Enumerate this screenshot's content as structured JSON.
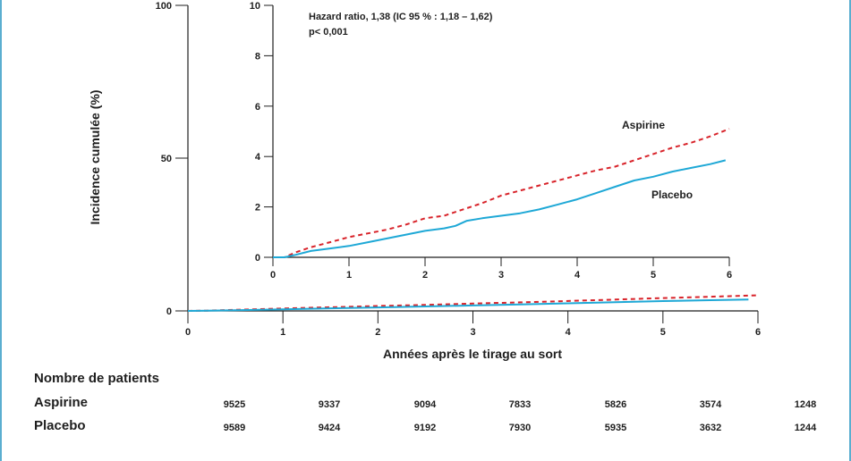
{
  "chart_data": [
    {
      "type": "line",
      "ylabel": "Incidence cumulée (%)",
      "xlabel": "Années après le tirage au sort",
      "xlim": [
        0,
        6
      ],
      "ylim": [
        0,
        100
      ],
      "x_ticks": [
        "0",
        "1",
        "2",
        "3",
        "4",
        "5",
        "6"
      ],
      "y_ticks": [
        "0",
        "50",
        "100"
      ],
      "series": [
        {
          "name": "Aspirine",
          "color": "#d8232a",
          "style": "dashed",
          "x": [
            0,
            0.2,
            0.5,
            1.0,
            1.5,
            2.0,
            2.5,
            3.0,
            3.5,
            4.0,
            4.5,
            5.0,
            5.5,
            6.0
          ],
          "y": [
            0,
            0.1,
            0.35,
            0.8,
            1.2,
            1.6,
            1.95,
            2.4,
            2.8,
            3.25,
            3.7,
            4.2,
            4.65,
            5.1
          ]
        },
        {
          "name": "Placebo",
          "color": "#1ea8d6",
          "style": "solid",
          "x": [
            0,
            0.2,
            0.5,
            1.0,
            1.5,
            2.0,
            2.5,
            3.0,
            3.5,
            4.0,
            4.5,
            5.0,
            5.5,
            5.9
          ],
          "y": [
            0,
            0.05,
            0.22,
            0.52,
            0.85,
            1.15,
            1.45,
            1.78,
            2.1,
            2.48,
            2.88,
            3.22,
            3.5,
            3.75
          ]
        }
      ]
    },
    {
      "type": "line",
      "annotation_lines": [
        "Hazard ratio, 1,38 (IC 95 % : 1,18 – 1,62)",
        "p< 0,001"
      ],
      "xlim": [
        0,
        6
      ],
      "ylim": [
        0,
        10
      ],
      "x_ticks": [
        "0",
        "1",
        "2",
        "3",
        "4",
        "5",
        "6"
      ],
      "y_ticks": [
        "0",
        "2",
        "4",
        "6",
        "8",
        "10"
      ],
      "series": [
        {
          "name": "Aspirine",
          "color": "#d8232a",
          "style": "dashed",
          "x": [
            0,
            0.15,
            0.3,
            0.5,
            0.75,
            1.0,
            1.25,
            1.5,
            1.75,
            2.0,
            2.25,
            2.5,
            2.75,
            3.0,
            3.25,
            3.5,
            3.75,
            4.0,
            4.25,
            4.5,
            4.75,
            5.0,
            5.25,
            5.5,
            5.75,
            6.0
          ],
          "y": [
            0,
            0.0,
            0.2,
            0.4,
            0.6,
            0.8,
            0.95,
            1.1,
            1.3,
            1.55,
            1.65,
            1.9,
            2.15,
            2.45,
            2.65,
            2.85,
            3.05,
            3.25,
            3.45,
            3.6,
            3.85,
            4.1,
            4.35,
            4.55,
            4.8,
            5.1
          ]
        },
        {
          "name": "Placebo",
          "color": "#1ea8d6",
          "style": "solid",
          "x": [
            0,
            0.15,
            0.3,
            0.5,
            0.75,
            1.0,
            1.25,
            1.5,
            1.75,
            2.0,
            2.25,
            2.4,
            2.55,
            2.75,
            3.0,
            3.25,
            3.5,
            3.75,
            4.0,
            4.25,
            4.5,
            4.75,
            5.0,
            5.25,
            5.5,
            5.75,
            5.95
          ],
          "y": [
            0,
            0.0,
            0.1,
            0.25,
            0.35,
            0.45,
            0.6,
            0.75,
            0.9,
            1.05,
            1.15,
            1.25,
            1.45,
            1.55,
            1.65,
            1.75,
            1.9,
            2.1,
            2.3,
            2.55,
            2.8,
            3.05,
            3.2,
            3.4,
            3.55,
            3.7,
            3.85
          ]
        }
      ]
    }
  ],
  "risk_table": {
    "title": "Nombre de patients",
    "rows": [
      {
        "label": "Aspirine",
        "values": [
          "9525",
          "9337",
          "9094",
          "7833",
          "5826",
          "3574",
          "1248"
        ]
      },
      {
        "label": "Placebo",
        "values": [
          "9589",
          "9424",
          "9192",
          "7930",
          "5935",
          "3632",
          "1244"
        ]
      }
    ]
  }
}
